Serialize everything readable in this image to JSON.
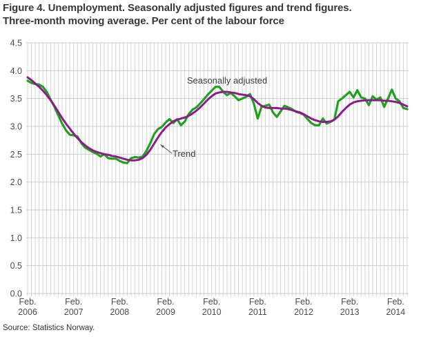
{
  "figure": {
    "title_line1": "Figure 4. Unemployment. Seasonally adjusted figures and trend figures.",
    "title_line2": "Three-month moving average. Per cent of the labour force",
    "source": "Source: Statistics Norway."
  },
  "colors": {
    "seasonally_adjusted": "#1fa11f",
    "trend": "#8d1b8d",
    "gridline": "#cbcbcb",
    "month_gridline": "#d4d4d4",
    "axis_text": "#4c4c4c",
    "annotation_text": "#3c3c3c"
  },
  "chart_data": {
    "type": "line",
    "title": "Figure 4. Unemployment. Seasonally adjusted figures and trend figures. Three-month moving average. Per cent of the labour force",
    "xlabel": "",
    "ylabel": "Per cent of the labour force",
    "ylim": [
      0,
      4.5
    ],
    "ytick_step": 0.5,
    "grid": "horizontal every 0.5, vertical every month",
    "legend_position": "inline annotations on chart",
    "x_start": "2006-02",
    "x_frequency": "monthly",
    "months": [
      "2006-02",
      "2006-03",
      "2006-04",
      "2006-05",
      "2006-06",
      "2006-07",
      "2006-08",
      "2006-09",
      "2006-10",
      "2006-11",
      "2006-12",
      "2007-01",
      "2007-02",
      "2007-03",
      "2007-04",
      "2007-05",
      "2007-06",
      "2007-07",
      "2007-08",
      "2007-09",
      "2007-10",
      "2007-11",
      "2007-12",
      "2008-01",
      "2008-02",
      "2008-03",
      "2008-04",
      "2008-05",
      "2008-06",
      "2008-07",
      "2008-08",
      "2008-09",
      "2008-10",
      "2008-11",
      "2008-12",
      "2009-01",
      "2009-02",
      "2009-03",
      "2009-04",
      "2009-05",
      "2009-06",
      "2009-07",
      "2009-08",
      "2009-09",
      "2009-10",
      "2009-11",
      "2009-12",
      "2010-01",
      "2010-02",
      "2010-03",
      "2010-04",
      "2010-05",
      "2010-06",
      "2010-07",
      "2010-08",
      "2010-09",
      "2010-10",
      "2010-11",
      "2010-12",
      "2011-01",
      "2011-02",
      "2011-03",
      "2011-04",
      "2011-05",
      "2011-06",
      "2011-07",
      "2011-08",
      "2011-09",
      "2011-10",
      "2011-11",
      "2011-12",
      "2012-01",
      "2012-02",
      "2012-03",
      "2012-04",
      "2012-05",
      "2012-06",
      "2012-07",
      "2012-08",
      "2012-09",
      "2012-10",
      "2012-11",
      "2012-12",
      "2013-01",
      "2013-02",
      "2013-03",
      "2013-04",
      "2013-05",
      "2013-06",
      "2013-07",
      "2013-08",
      "2013-09",
      "2013-10",
      "2013-11",
      "2013-12",
      "2014-01",
      "2014-02",
      "2014-03",
      "2014-04",
      "2014-05"
    ],
    "series": [
      {
        "name": "Seasonally adjusted",
        "color": "#1fa11f",
        "values": [
          3.82,
          3.78,
          3.76,
          3.75,
          3.71,
          3.62,
          3.48,
          3.35,
          3.2,
          3.05,
          2.93,
          2.85,
          2.84,
          2.82,
          2.7,
          2.62,
          2.58,
          2.54,
          2.51,
          2.46,
          2.5,
          2.43,
          2.42,
          2.42,
          2.38,
          2.35,
          2.34,
          2.43,
          2.45,
          2.44,
          2.46,
          2.56,
          2.7,
          2.86,
          2.95,
          2.99,
          3.07,
          3.13,
          3.06,
          3.13,
          3.02,
          3.09,
          3.22,
          3.3,
          3.34,
          3.41,
          3.49,
          3.57,
          3.64,
          3.71,
          3.71,
          3.62,
          3.56,
          3.6,
          3.54,
          3.47,
          3.5,
          3.53,
          3.58,
          3.41,
          3.14,
          3.35,
          3.37,
          3.39,
          3.25,
          3.17,
          3.27,
          3.37,
          3.34,
          3.31,
          3.26,
          3.24,
          3.21,
          3.13,
          3.06,
          3.02,
          3.02,
          3.14,
          3.05,
          3.08,
          3.12,
          3.45,
          3.5,
          3.56,
          3.62,
          3.52,
          3.65,
          3.52,
          3.5,
          3.38,
          3.54,
          3.48,
          3.52,
          3.35,
          3.5,
          3.66,
          3.5,
          3.45,
          3.33,
          3.31
        ]
      },
      {
        "name": "Trend",
        "color": "#8d1b8d",
        "values": [
          3.88,
          3.83,
          3.77,
          3.71,
          3.64,
          3.56,
          3.47,
          3.37,
          3.26,
          3.15,
          3.05,
          2.96,
          2.87,
          2.79,
          2.72,
          2.66,
          2.61,
          2.57,
          2.54,
          2.52,
          2.5,
          2.49,
          2.47,
          2.46,
          2.44,
          2.42,
          2.4,
          2.39,
          2.39,
          2.4,
          2.43,
          2.49,
          2.58,
          2.69,
          2.8,
          2.9,
          2.98,
          3.04,
          3.09,
          3.12,
          3.14,
          3.16,
          3.19,
          3.23,
          3.28,
          3.34,
          3.41,
          3.48,
          3.54,
          3.59,
          3.61,
          3.62,
          3.62,
          3.61,
          3.6,
          3.58,
          3.57,
          3.56,
          3.54,
          3.49,
          3.42,
          3.37,
          3.34,
          3.33,
          3.33,
          3.33,
          3.32,
          3.32,
          3.31,
          3.29,
          3.27,
          3.25,
          3.22,
          3.18,
          3.14,
          3.11,
          3.09,
          3.08,
          3.08,
          3.09,
          3.12,
          3.18,
          3.26,
          3.33,
          3.39,
          3.43,
          3.45,
          3.46,
          3.47,
          3.47,
          3.47,
          3.47,
          3.47,
          3.46,
          3.46,
          3.45,
          3.44,
          3.42,
          3.39,
          3.36
        ]
      }
    ],
    "y_tick_labels": [
      "4.5",
      "4.0",
      "3.5",
      "3.0",
      "2.5",
      "2.0",
      "1.5",
      "1.0",
      "0.5",
      "0.0"
    ],
    "x_tick_labels": [
      {
        "month": "Feb.",
        "year": "2006"
      },
      {
        "month": "Feb.",
        "year": "2007"
      },
      {
        "month": "Feb.",
        "year": "2008"
      },
      {
        "month": "Feb.",
        "year": "2009"
      },
      {
        "month": "Feb.",
        "year": "2010"
      },
      {
        "month": "Feb.",
        "year": "2011"
      },
      {
        "month": "Feb.",
        "year": "2012"
      },
      {
        "month": "Feb.",
        "year": "2013"
      },
      {
        "month": "Feb.",
        "year": "2014"
      }
    ],
    "annotations": [
      {
        "text": "Seasonally adjusted",
        "points_to": "Seasonally adjusted series"
      },
      {
        "text": "Trend",
        "points_to": "Trend series",
        "arrow": true
      }
    ]
  }
}
